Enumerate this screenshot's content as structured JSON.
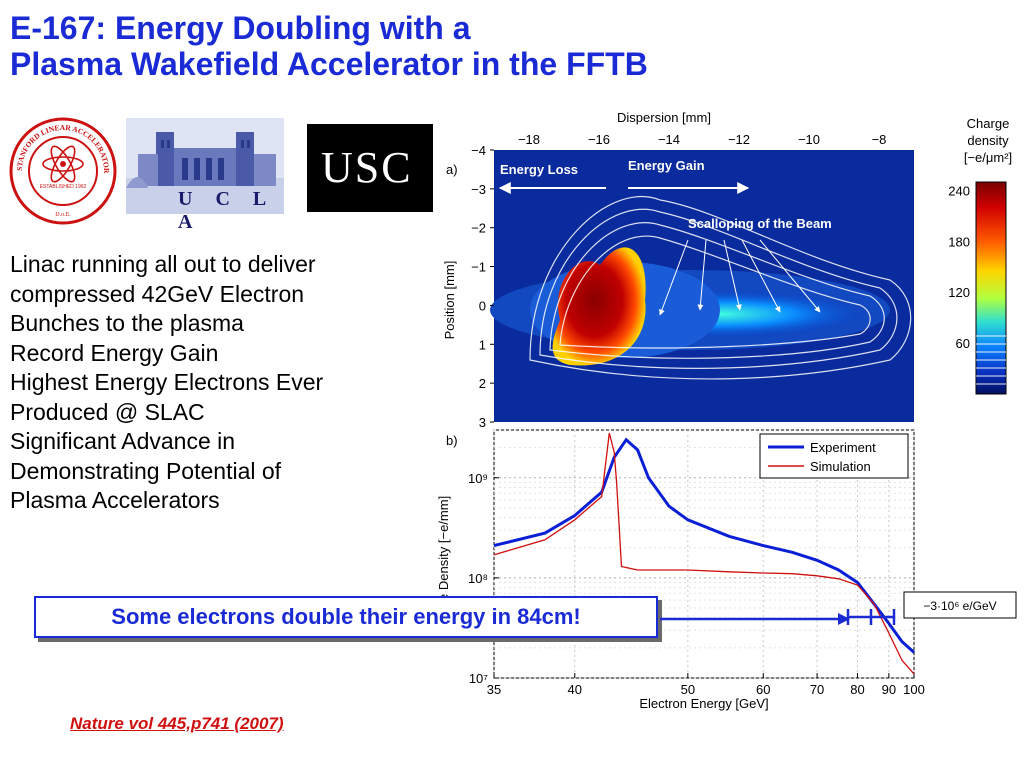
{
  "title": {
    "line1": "E-167: Energy Doubling with a",
    "line2": "Plasma Wakefield Accelerator in the FFTB"
  },
  "logos": {
    "slac": "STANFORD LINEAR ACCELERATOR CENTER",
    "slac_established": "ESTABLISHED 1962",
    "slac_doe": "D.o.E.",
    "ucla": "U C L A",
    "usc": "USC"
  },
  "bullets": [
    "Linac running all out to deliver",
    "compressed 42GeV Electron",
    "Bunches to the plasma",
    "Record Energy Gain",
    "Highest Energy Electrons Ever",
    "Produced @ SLAC",
    "Significant Advance in",
    "Demonstrating Potential of",
    "Plasma Accelerators"
  ],
  "callout": "Some electrons double their energy in 84cm!",
  "citation": "Nature vol 445,p741 (2007)",
  "colors": {
    "title": "#1a2bd6",
    "callout": "#1a2bd6",
    "citation": "#d01010",
    "experiment": "#0a1fd6",
    "simulation": "#d01010"
  },
  "chart_data": [
    {
      "type": "heatmap",
      "panel_label": "a)",
      "title": "",
      "xlabel": "Dispersion [mm]",
      "xticks": [
        "-18",
        "-16",
        "-14",
        "-12",
        "-10",
        "-8"
      ],
      "xlim": [
        -19,
        -7
      ],
      "ylabel": "Position [mm]",
      "yticks": [
        "-4",
        "-3",
        "-2",
        "-1",
        "0",
        "1",
        "2",
        "3"
      ],
      "ylim": [
        -4,
        3
      ],
      "annotations": [
        "Energy Loss",
        "Energy Gain",
        "Scalloping of the Beam"
      ],
      "colorbar": {
        "label_line1": "Charge",
        "label_line2": "density",
        "label_line3": "[−e/μm²]",
        "ticks": [
          "240",
          "180",
          "120",
          "60"
        ],
        "range": [
          0,
          250
        ]
      }
    },
    {
      "type": "line",
      "panel_label": "b)",
      "xlabel": "Electron Energy [GeV]",
      "ylabel": "ge Density [−e/mm]",
      "xticks": [
        "35",
        "40",
        "50",
        "60",
        "70",
        "80",
        "90",
        "100"
      ],
      "yticks": [
        "10⁷",
        "10⁸",
        "10⁹"
      ],
      "xscale": "reciprocal",
      "yscale": "log",
      "xlim": [
        35,
        100
      ],
      "ylim": [
        10000000,
        3000000000
      ],
      "grid": true,
      "legend": "top-right",
      "error_bar_label": "−3·10⁶ e/GeV",
      "series": [
        {
          "name": "Experiment",
          "x": [
            35,
            38,
            40,
            42,
            43,
            44,
            45,
            46,
            48,
            50,
            55,
            60,
            65,
            70,
            75,
            80,
            85,
            90,
            95,
            100
          ],
          "y": [
            210000000,
            280000000,
            420000000,
            720000000,
            1600000000,
            2400000000,
            1900000000,
            1000000000,
            520000000,
            380000000,
            260000000,
            210000000,
            180000000,
            150000000,
            120000000,
            90000000,
            55000000,
            35000000,
            23000000,
            18000000
          ]
        },
        {
          "name": "Simulation",
          "x": [
            35,
            38,
            40,
            42,
            42.6,
            43,
            43.2,
            43.6,
            45,
            50,
            55,
            60,
            65,
            70,
            75,
            80,
            85,
            90,
            95,
            100
          ],
          "y": [
            170000000,
            240000000,
            380000000,
            650000000,
            2800000000,
            1800000000,
            900000000,
            130000000,
            120000000,
            120000000,
            115000000,
            112000000,
            110000000,
            105000000,
            98000000,
            85000000,
            55000000,
            28000000,
            15000000,
            11000000
          ]
        }
      ]
    }
  ]
}
